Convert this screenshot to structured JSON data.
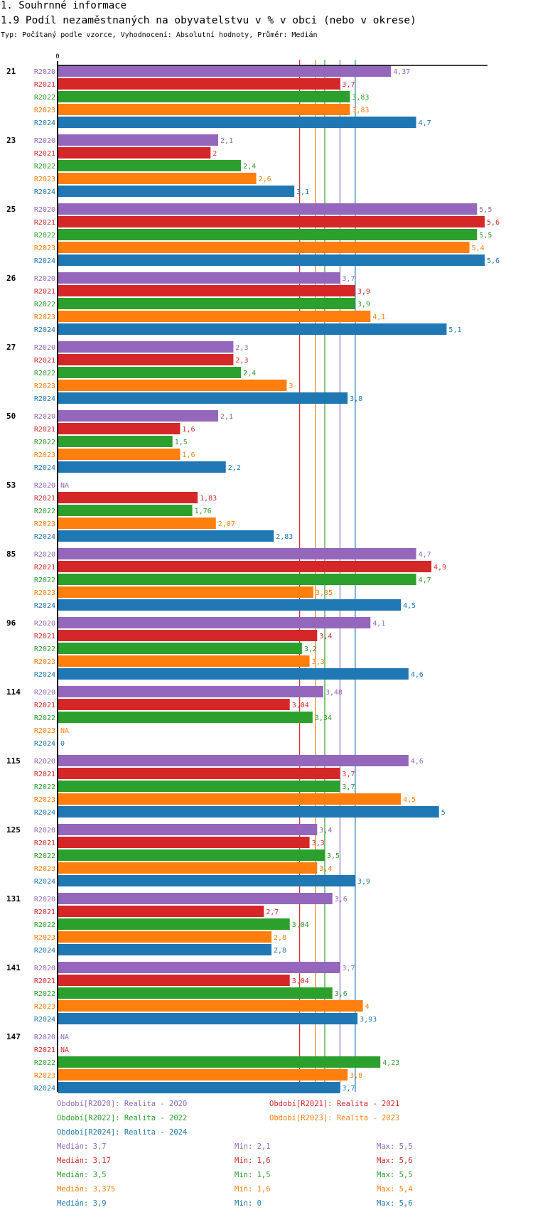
{
  "header": {
    "section_title": "1. Souhrnné informace",
    "chart_title": "1.9 Podíl nezaměstnaných na obyvatelstvu v % v obci (nebo v okrese)",
    "subtitle": "Typ: Počítaný podle vzorce, Vyhodnocení: Absolutní hodnoty, Průměr: Medián"
  },
  "chart_data": {
    "type": "bar",
    "orientation": "horizontal",
    "title": "1.9 Podíl nezaměstnaných na obyvatelstvu v % v obci (nebo v okrese)",
    "xlabel": "",
    "ylabel": "",
    "x_tick_labels": [
      "0"
    ],
    "xlim": [
      0,
      5.6
    ],
    "grid": false,
    "categories": [
      "21",
      "23",
      "25",
      "26",
      "27",
      "50",
      "53",
      "85",
      "96",
      "114",
      "115",
      "125",
      "131",
      "141",
      "147"
    ],
    "series": [
      {
        "name": "R2020",
        "color": "#9467bd",
        "values": [
          4.37,
          2.1,
          5.5,
          3.7,
          2.3,
          2.1,
          null,
          4.7,
          4.1,
          3.48,
          4.6,
          3.4,
          3.6,
          3.7,
          null
        ],
        "labels": [
          "4,37",
          "2,1",
          "5,5",
          "3,7",
          "2,3",
          "2,1",
          "NA",
          "4,7",
          "4,1",
          "3,48",
          "4,6",
          "3,4",
          "3,6",
          "3,7",
          "NA"
        ]
      },
      {
        "name": "R2021",
        "color": "#d62728",
        "values": [
          3.7,
          2,
          5.6,
          3.9,
          2.3,
          1.6,
          1.83,
          4.9,
          3.4,
          3.04,
          3.7,
          3.3,
          2.7,
          3.04,
          null
        ],
        "labels": [
          "3,7",
          "2",
          "5,6",
          "3,9",
          "2,3",
          "1,6",
          "1,83",
          "4,9",
          "3,4",
          "3,04",
          "3,7",
          "3,3",
          "2,7",
          "3,04",
          "NA"
        ]
      },
      {
        "name": "R2022",
        "color": "#2ca02c",
        "values": [
          3.83,
          2.4,
          5.5,
          3.9,
          2.4,
          1.5,
          1.76,
          4.7,
          3.2,
          3.34,
          3.7,
          3.5,
          3.04,
          3.6,
          4.23
        ],
        "labels": [
          "3,83",
          "2,4",
          "5,5",
          "3,9",
          "2,4",
          "1,5",
          "1,76",
          "4,7",
          "3,2",
          "3,34",
          "3,7",
          "3,5",
          "3,04",
          "3,6",
          "4,23"
        ]
      },
      {
        "name": "R2023",
        "color": "#ff7f0e",
        "values": [
          3.83,
          2.6,
          5.4,
          4.1,
          3,
          1.6,
          2.07,
          3.35,
          3.3,
          null,
          4.5,
          3.4,
          2.8,
          4,
          3.8
        ],
        "labels": [
          "3,83",
          "2,6",
          "5,4",
          "4,1",
          "3",
          "1,6",
          "2,07",
          "3,35",
          "3,3",
          "NA",
          "4,5",
          "3,4",
          "2,8",
          "4",
          "3,8"
        ]
      },
      {
        "name": "R2024",
        "color": "#1f77b4",
        "values": [
          4.7,
          3.1,
          5.6,
          5.1,
          3.8,
          2.2,
          2.83,
          4.5,
          4.6,
          0,
          5,
          3.9,
          2.8,
          3.93,
          3.7
        ],
        "labels": [
          "4,7",
          "3,1",
          "5,6",
          "5,1",
          "3,8",
          "2,2",
          "2,83",
          "4,5",
          "4,6",
          "0",
          "5",
          "3,9",
          "2,8",
          "3,93",
          "3,7"
        ]
      }
    ],
    "reference_lines": [
      {
        "series": "R2021",
        "type": "median",
        "value": 3.17,
        "color": "#d62728"
      },
      {
        "series": "R2023",
        "type": "median",
        "value": 3.375,
        "color": "#ff7f0e"
      },
      {
        "series": "R2022",
        "type": "median",
        "value": 3.5,
        "color": "#2ca02c"
      },
      {
        "series": "R2020",
        "type": "median",
        "value": 3.7,
        "color": "#9467bd"
      },
      {
        "series": "R2024",
        "type": "median",
        "value": 3.9,
        "color": "#1f77b4"
      }
    ],
    "legend": {
      "placement": "bottom",
      "entries": [
        {
          "text": "Období[R2020]: Realita - 2020",
          "color": "#9467bd"
        },
        {
          "text": "Období[R2021]: Realita - 2021",
          "color": "#d62728"
        },
        {
          "text": "Období[R2022]: Realita - 2022",
          "color": "#2ca02c"
        },
        {
          "text": "Období[R2023]: Realita - 2023",
          "color": "#ff7f0e"
        },
        {
          "text": "Období[R2024]: Realita - 2024",
          "color": "#1f77b4"
        }
      ]
    },
    "statistics": [
      {
        "series": "R2020",
        "color": "#9467bd",
        "median": "Medián: 3,7",
        "min": "Min: 2,1",
        "max": "Max: 5,5"
      },
      {
        "series": "R2021",
        "color": "#d62728",
        "median": "Medián: 3,17",
        "min": "Min: 1,6",
        "max": "Max: 5,6"
      },
      {
        "series": "R2022",
        "color": "#2ca02c",
        "median": "Medián: 3,5",
        "min": "Min: 1,5",
        "max": "Max: 5,5"
      },
      {
        "series": "R2023",
        "color": "#ff7f0e",
        "median": "Medián: 3,375",
        "min": "Min: 1,6",
        "max": "Max: 5,4"
      },
      {
        "series": "R2024",
        "color": "#1f77b4",
        "median": "Medián: 3,9",
        "min": "Min: 0",
        "max": "Max: 5,6"
      }
    ]
  }
}
